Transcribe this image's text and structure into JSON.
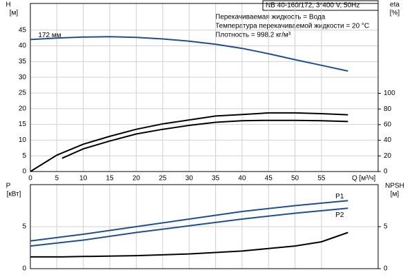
{
  "title": "NB 40-160/172, 3*400 V, 50Hz",
  "info": [
    "Перекачиваемая жидкость = Вода",
    "Температура перекачиваемой жидкости = 20 °C",
    "Плотность = 998.2 кг/м³"
  ],
  "chart_data": [
    {
      "type": "line",
      "y_label": "H",
      "y_unit": "[м]",
      "y2_label": "eta",
      "y2_unit": "[%]",
      "x_label": "Q [м³/ч]",
      "xlim": [
        0,
        65.7
      ],
      "xticks": [
        0,
        5,
        10,
        15,
        20,
        25,
        30,
        35,
        40,
        45,
        50,
        55
      ],
      "ylim": [
        0,
        53.5
      ],
      "yticks": [
        0,
        5,
        10,
        15,
        20,
        25,
        30,
        35,
        40,
        45
      ],
      "y2lim": [
        0,
        215
      ],
      "y2ticks": [
        0,
        20,
        40,
        60,
        80,
        100
      ],
      "grid": true,
      "series": [
        {
          "name": "172 мм",
          "color": "#1f4e8c",
          "x": [
            0,
            5,
            10,
            15,
            20,
            25,
            30,
            35,
            40,
            45,
            50,
            55,
            60
          ],
          "values": [
            42,
            42.5,
            42.8,
            42.9,
            42.7,
            42.2,
            41.5,
            40.5,
            39.2,
            37.5,
            35.6,
            33.8,
            32
          ]
        },
        {
          "color": "#000000",
          "axis": "y2",
          "x": [
            0,
            5,
            10,
            15,
            20,
            25,
            30,
            35,
            40,
            45,
            50,
            55,
            60
          ],
          "values": [
            0,
            21,
            35,
            45,
            54,
            61,
            66,
            71,
            73,
            75,
            75,
            74,
            72.6
          ]
        },
        {
          "color": "#000000",
          "axis": "y2",
          "x": [
            6,
            10,
            15,
            20,
            25,
            30,
            35,
            40,
            45,
            50,
            55,
            60
          ],
          "values": [
            17,
            29,
            39,
            48,
            54,
            59,
            63,
            65,
            65.5,
            65.5,
            65,
            64
          ]
        }
      ]
    },
    {
      "type": "line",
      "y_label": "P",
      "y_unit": "[кВт]",
      "y2_label": "NPSH",
      "y2_unit": "[м]",
      "xlim": [
        0,
        65.7
      ],
      "xticks": [
        0,
        5,
        10,
        15,
        20,
        25,
        30,
        35,
        40,
        45,
        50,
        55
      ],
      "ylim": [
        0,
        10
      ],
      "yticks": [
        0,
        5
      ],
      "y2lim": [
        0,
        10
      ],
      "y2ticks": [
        0,
        5
      ],
      "grid": true,
      "series": [
        {
          "name": "P1",
          "color": "#1f4e8c",
          "x": [
            0,
            10,
            20,
            30,
            40,
            50,
            60
          ],
          "values": [
            3.3,
            4.1,
            5.0,
            5.9,
            6.8,
            7.5,
            8.1
          ]
        },
        {
          "name": "P2",
          "color": "#1f4e8c",
          "x": [
            0,
            10,
            20,
            30,
            40,
            50,
            60
          ],
          "values": [
            2.7,
            3.4,
            4.3,
            5.1,
            5.9,
            6.6,
            7.2
          ]
        },
        {
          "color": "#000000",
          "axis": "y2",
          "x": [
            0,
            6,
            10,
            20,
            30,
            40,
            50,
            55,
            60
          ],
          "values": [
            1.4,
            1.4,
            1.45,
            1.55,
            1.75,
            2.1,
            2.7,
            3.2,
            4.3
          ]
        }
      ]
    }
  ]
}
